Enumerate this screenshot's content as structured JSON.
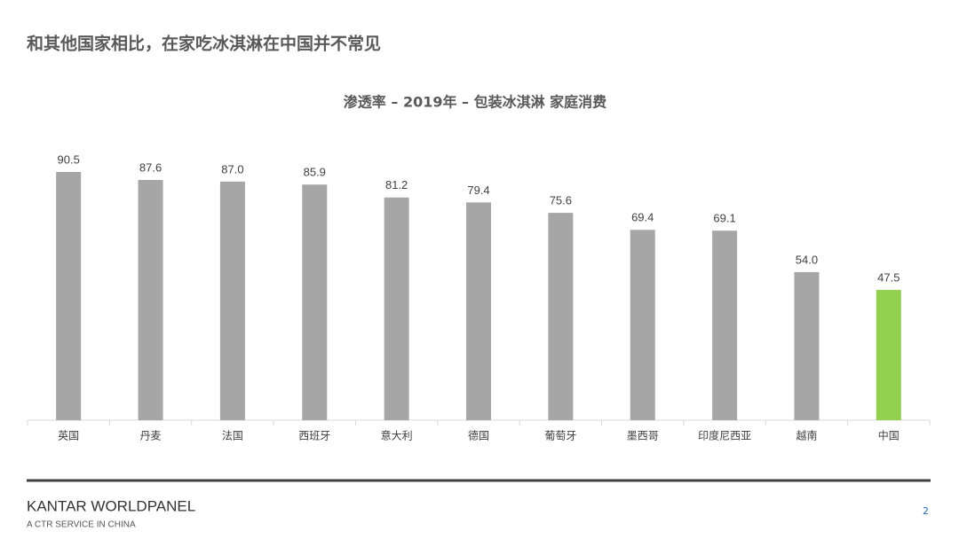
{
  "title": "和其他国家相比，在家吃冰淇淋在中国并不常见",
  "chart_data": {
    "type": "bar",
    "title": "渗透率 – 2019年 – 包装冰淇淋 家庭消费",
    "categories": [
      "英国",
      "丹麦",
      "法国",
      "西班牙",
      "意大利",
      "德国",
      "葡萄牙",
      "墨西哥",
      "印度尼西亚",
      "越南",
      "中国"
    ],
    "values": [
      90.5,
      87.6,
      87.0,
      85.9,
      81.2,
      79.4,
      75.6,
      69.4,
      69.1,
      54.0,
      47.5
    ],
    "value_labels": [
      "90.5",
      "87.6",
      "87.0",
      "85.9",
      "81.2",
      "79.4",
      "75.6",
      "69.4",
      "69.1",
      "54.0",
      "47.5"
    ],
    "colors": [
      "#a6a6a6",
      "#a6a6a6",
      "#a6a6a6",
      "#a6a6a6",
      "#a6a6a6",
      "#a6a6a6",
      "#a6a6a6",
      "#a6a6a6",
      "#a6a6a6",
      "#a6a6a6",
      "#92d050"
    ]
  },
  "footer": {
    "brand": "KANTAR WORLDPANEL",
    "tagline": "A CTR SERVICE IN CHINA",
    "page": "2"
  }
}
